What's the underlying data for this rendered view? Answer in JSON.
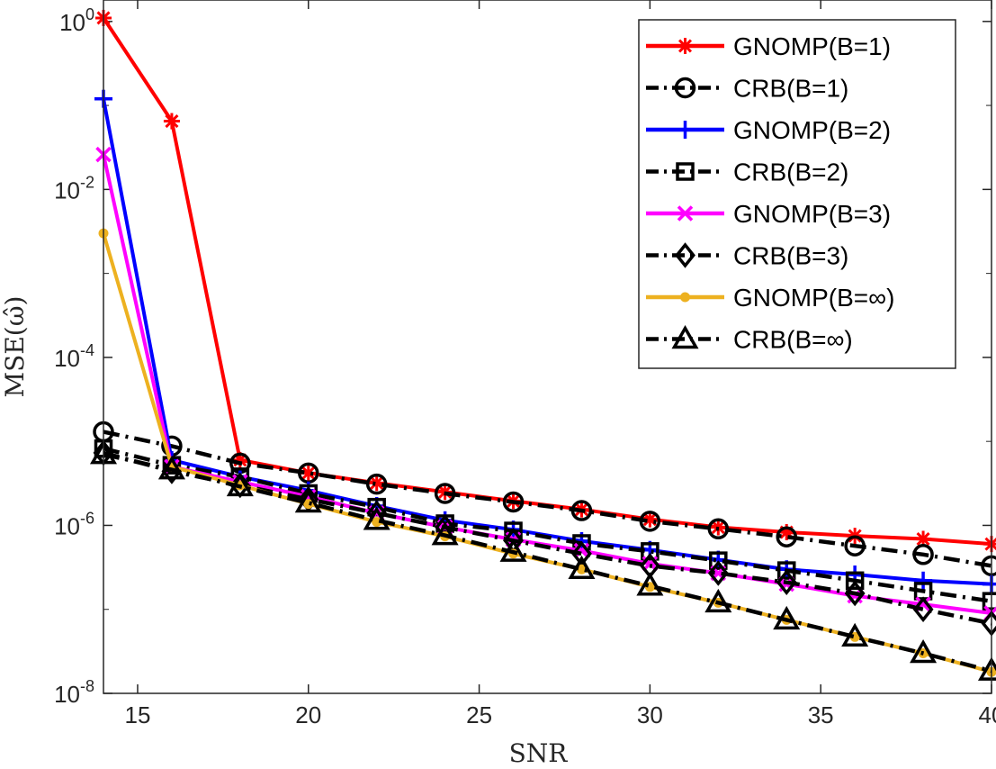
{
  "chart_data": {
    "type": "line",
    "xlabel": "SNR",
    "ylabel": "MSE(ω̂)",
    "yscale": "log",
    "xlim": [
      14,
      40
    ],
    "ylim": [
      1e-08,
      1.8
    ],
    "xticks": [
      15,
      20,
      25,
      30,
      35,
      40
    ],
    "xtick_labels": [
      "15",
      "20",
      "25",
      "30",
      "35",
      "40"
    ],
    "yticks": [
      1e-08,
      1e-06,
      0.0001,
      0.01,
      1
    ],
    "ytick_labels": [
      {
        "base": "10",
        "exp": "-8"
      },
      {
        "base": "10",
        "exp": "-6"
      },
      {
        "base": "10",
        "exp": "-4"
      },
      {
        "base": "10",
        "exp": "-2"
      },
      {
        "base": "10",
        "exp": "0"
      }
    ],
    "legend_position": "top-right",
    "x": [
      14,
      16,
      18,
      20,
      22,
      24,
      26,
      28,
      30,
      32,
      34,
      36,
      38,
      40
    ],
    "series": [
      {
        "name": "GNOMP(B=1)",
        "color": "#ff0000",
        "style": "solid",
        "marker": "asterisk",
        "values": [
          1.1,
          0.065,
          6e-06,
          4.2e-06,
          3.2e-06,
          2.5e-06,
          1.95e-06,
          1.55e-06,
          1.18e-06,
          9.5e-07,
          8.3e-07,
          7.5e-07,
          6.9e-07,
          6e-07
        ]
      },
      {
        "name": "CRB(B=1)",
        "color": "#000000",
        "style": "dashdot",
        "marker": "circle",
        "values": [
          1.3e-05,
          8.8e-06,
          5.5e-06,
          4.2e-06,
          3.1e-06,
          2.4e-06,
          1.9e-06,
          1.5e-06,
          1.12e-06,
          9.1e-07,
          7.3e-07,
          5.7e-07,
          4.5e-07,
          3.3e-07
        ]
      },
      {
        "name": "GNOMP(B=2)",
        "color": "#0000ff",
        "style": "solid",
        "marker": "plus",
        "values": [
          0.12,
          6e-06,
          3.8e-06,
          2.6e-06,
          1.7e-06,
          1.15e-06,
          8.9e-07,
          6.5e-07,
          5.1e-07,
          3.9e-07,
          3e-07,
          2.6e-07,
          2.2e-07,
          2e-07
        ]
      },
      {
        "name": "CRB(B=2)",
        "color": "#000000",
        "style": "dashdot",
        "marker": "square",
        "values": [
          8.2e-06,
          5.2e-06,
          3.8e-06,
          2.4e-06,
          1.65e-06,
          1.05e-06,
          8.6e-07,
          6.1e-07,
          4.9e-07,
          3.8e-07,
          2.9e-07,
          2.2e-07,
          1.65e-07,
          1.25e-07
        ]
      },
      {
        "name": "GNOMP(B=3)",
        "color": "#ff00ff",
        "style": "solid",
        "marker": "x",
        "values": [
          0.026,
          5e-06,
          3.3e-06,
          2.2e-06,
          1.4e-06,
          9.5e-07,
          6.8e-07,
          5e-07,
          3.5e-07,
          2.7e-07,
          2e-07,
          1.45e-07,
          1.15e-07,
          9e-08
        ]
      },
      {
        "name": "CRB(B=3)",
        "color": "#000000",
        "style": "dashdot",
        "marker": "diamond",
        "values": [
          7.3e-06,
          4.4e-06,
          3e-06,
          2.05e-06,
          1.4e-06,
          9.5e-07,
          6.6e-07,
          4.6e-07,
          3.3e-07,
          2.7e-07,
          2.1e-07,
          1.55e-07,
          1e-07,
          6.8e-08
        ]
      },
      {
        "name": "GNOMP(B=∞)",
        "color": "#edb120",
        "style": "solid",
        "marker": "dot",
        "values": [
          0.003,
          5e-06,
          3e-06,
          1.8e-06,
          1.1e-06,
          7.4e-07,
          4.6e-07,
          3e-07,
          1.85e-07,
          1.2e-07,
          7.5e-08,
          4.7e-08,
          3e-08,
          1.8e-08
        ]
      },
      {
        "name": "CRB(B=∞)",
        "color": "#000000",
        "style": "dashdot",
        "marker": "triangle",
        "values": [
          7e-06,
          4.6e-06,
          2.9e-06,
          1.85e-06,
          1.15e-06,
          7.6e-07,
          4.8e-07,
          3e-07,
          1.9e-07,
          1.2e-07,
          7.5e-08,
          4.7e-08,
          3e-08,
          1.85e-08
        ]
      }
    ]
  }
}
